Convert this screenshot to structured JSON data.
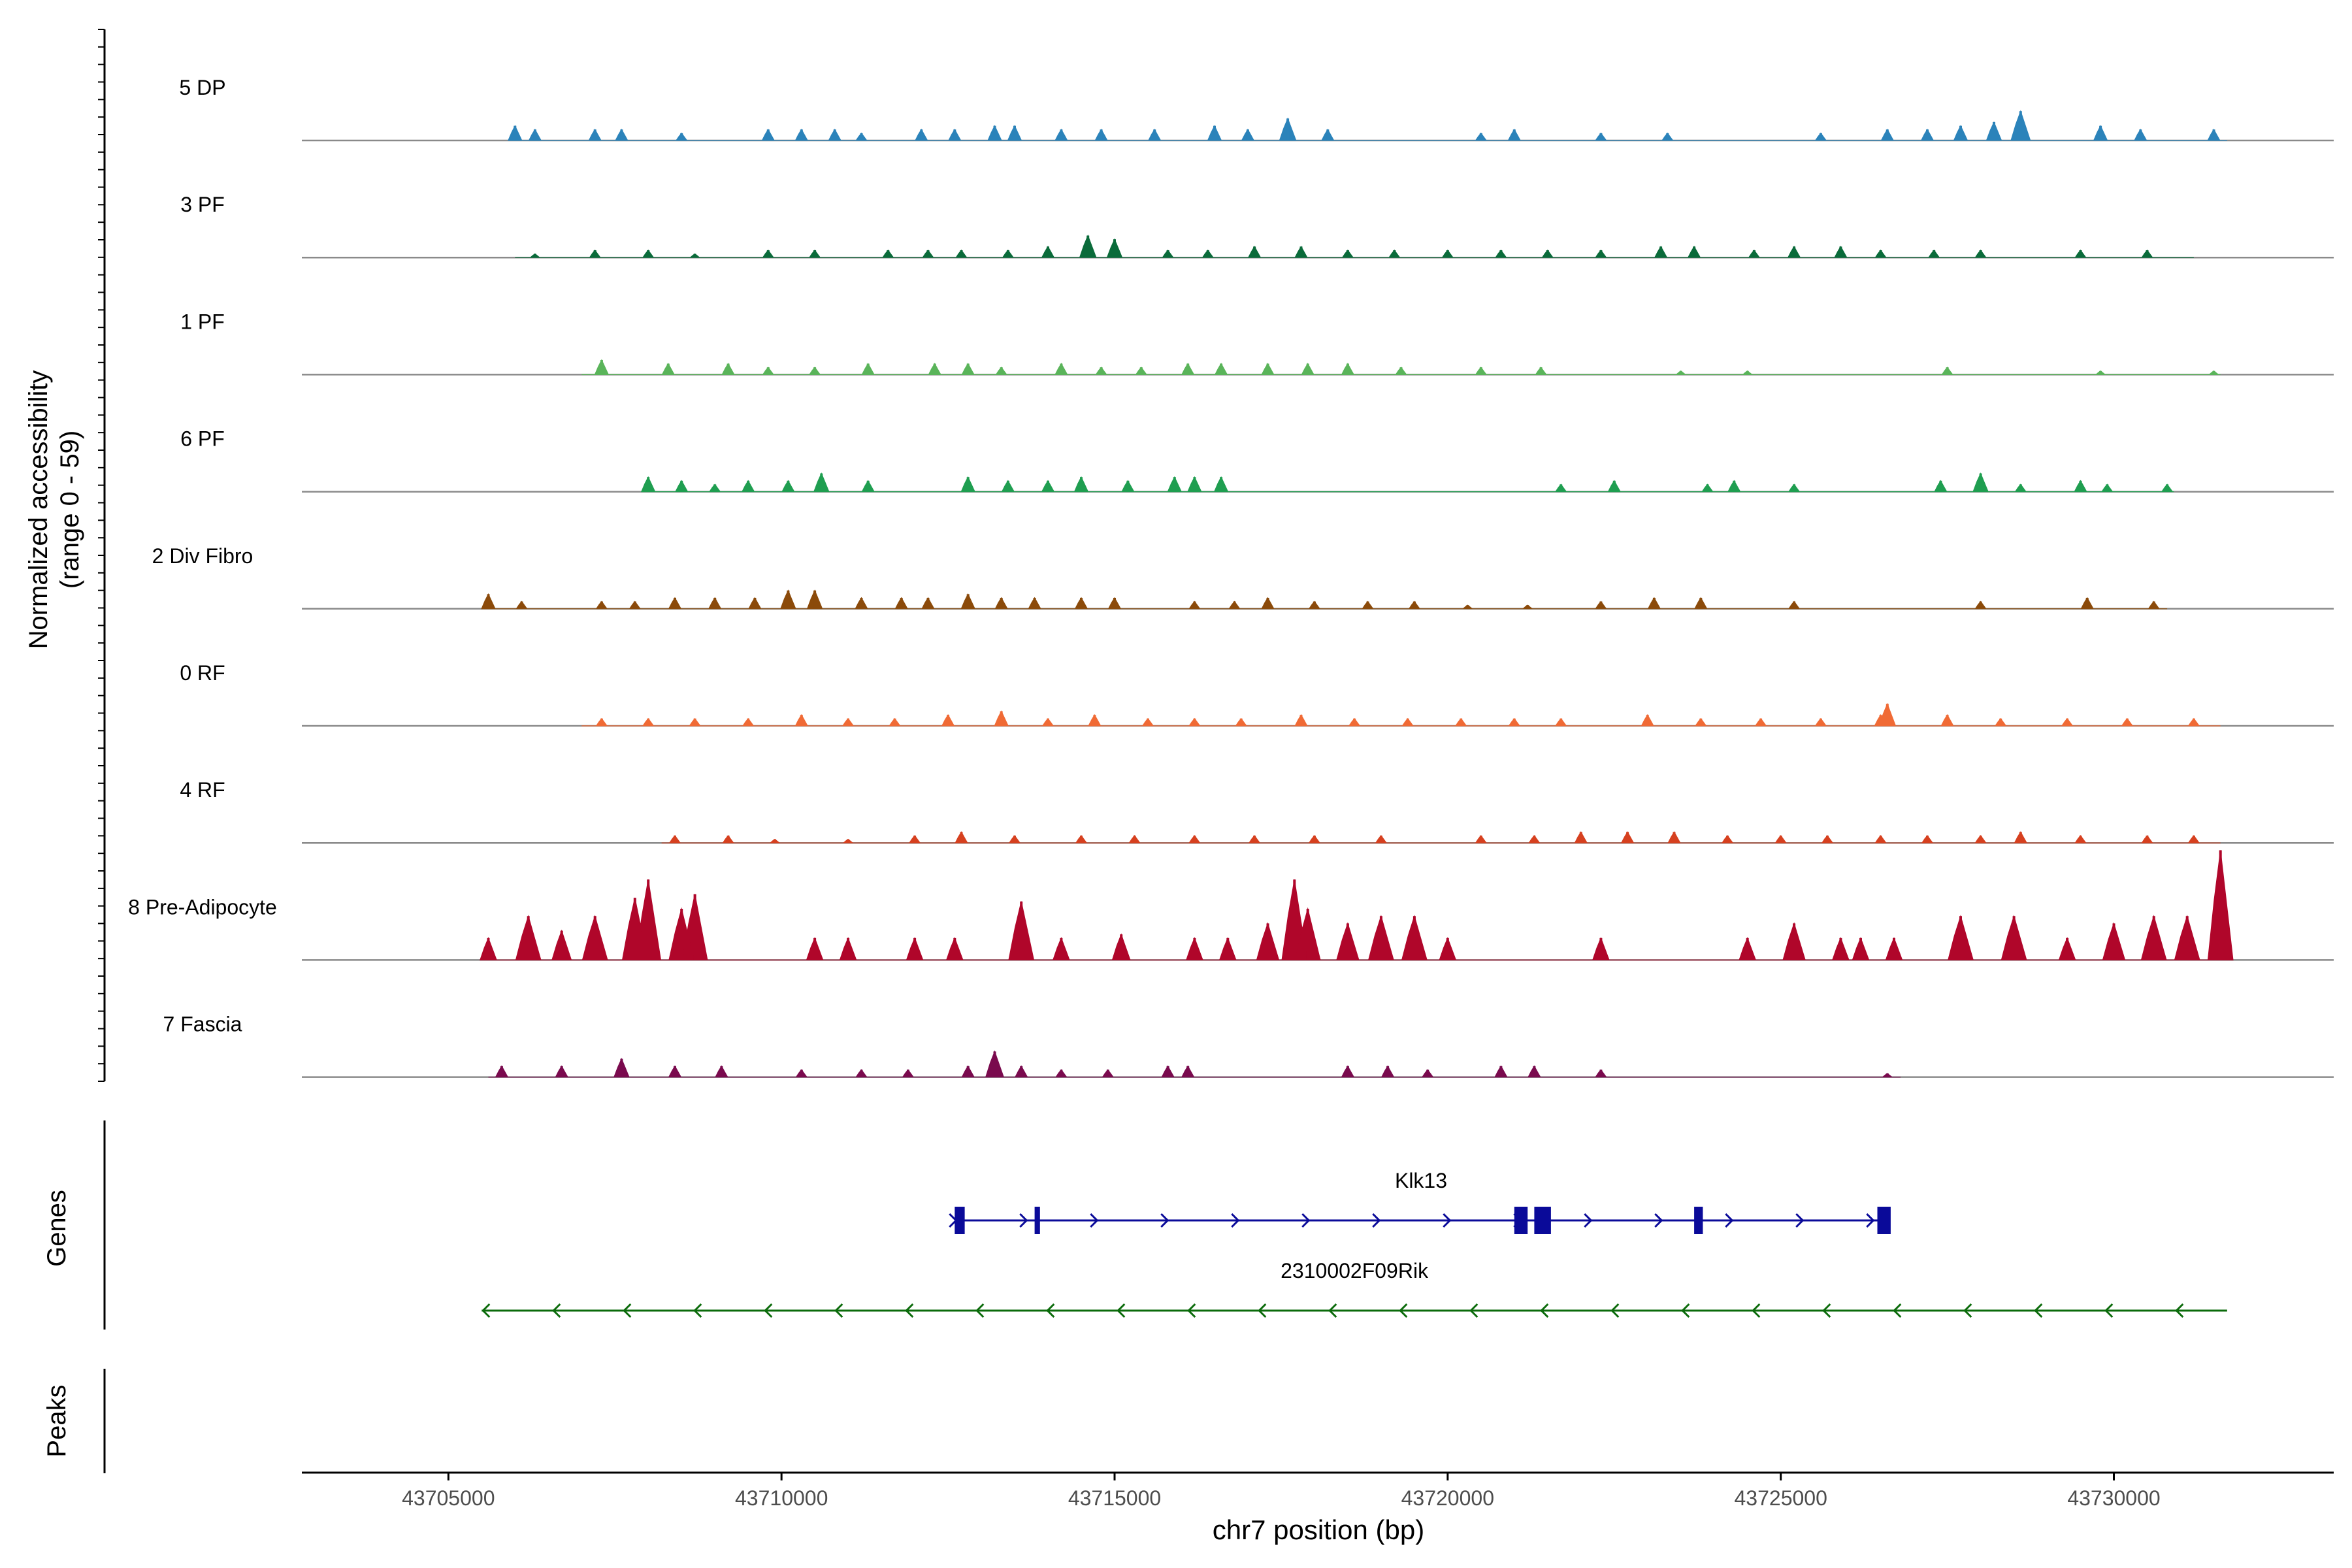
{
  "chart_data": {
    "type": "area",
    "title": "",
    "ylabel_line1": "Normalized accessibility",
    "ylabel_line2": "(range 0 - 59)",
    "ylim": [
      0,
      59
    ],
    "xlabel": "chr7 position (bp)",
    "xlim": [
      43702800,
      43733300
    ],
    "xticks": [
      43705000,
      43710000,
      43715000,
      43720000,
      43725000,
      43730000
    ],
    "xtick_labels": [
      "43705000",
      "43710000",
      "43715000",
      "43720000",
      "43725000",
      "43730000"
    ],
    "genes_label": "Genes",
    "peaks_label": "Peaks",
    "tracks": [
      {
        "name": "5 DP",
        "color": "#2b83ba",
        "range": [
          43706000,
          43731700
        ],
        "peaks": [
          [
            43706000,
            4
          ],
          [
            43706300,
            3
          ],
          [
            43707200,
            3
          ],
          [
            43707600,
            3
          ],
          [
            43708500,
            2
          ],
          [
            43709800,
            3
          ],
          [
            43710300,
            3
          ],
          [
            43710800,
            3
          ],
          [
            43711200,
            2
          ],
          [
            43712100,
            3
          ],
          [
            43712600,
            3
          ],
          [
            43713200,
            4
          ],
          [
            43713500,
            4
          ],
          [
            43714200,
            3
          ],
          [
            43714800,
            3
          ],
          [
            43715600,
            3
          ],
          [
            43716500,
            4
          ],
          [
            43717000,
            3
          ],
          [
            43717600,
            6
          ],
          [
            43718200,
            3
          ],
          [
            43720500,
            2
          ],
          [
            43721000,
            3
          ],
          [
            43722300,
            2
          ],
          [
            43723300,
            2
          ],
          [
            43725600,
            2
          ],
          [
            43726600,
            3
          ],
          [
            43727200,
            3
          ],
          [
            43727700,
            4
          ],
          [
            43728200,
            5
          ],
          [
            43728600,
            8
          ],
          [
            43729800,
            4
          ],
          [
            43730400,
            3
          ],
          [
            43731500,
            3
          ]
        ]
      },
      {
        "name": "3 PF",
        "color": "#0a6b3a",
        "range": [
          43706000,
          43731200
        ],
        "peaks": [
          [
            43706300,
            1
          ],
          [
            43707200,
            2
          ],
          [
            43708000,
            2
          ],
          [
            43708700,
            1
          ],
          [
            43709800,
            2
          ],
          [
            43710500,
            2
          ],
          [
            43711600,
            2
          ],
          [
            43712200,
            2
          ],
          [
            43712700,
            2
          ],
          [
            43713400,
            2
          ],
          [
            43714000,
            3
          ],
          [
            43714600,
            6
          ],
          [
            43715000,
            5
          ],
          [
            43715800,
            2
          ],
          [
            43716400,
            2
          ],
          [
            43717100,
            3
          ],
          [
            43717800,
            3
          ],
          [
            43718500,
            2
          ],
          [
            43719200,
            2
          ],
          [
            43720000,
            2
          ],
          [
            43720800,
            2
          ],
          [
            43721500,
            2
          ],
          [
            43722300,
            2
          ],
          [
            43723200,
            3
          ],
          [
            43723700,
            3
          ],
          [
            43724600,
            2
          ],
          [
            43725200,
            3
          ],
          [
            43725900,
            3
          ],
          [
            43726500,
            2
          ],
          [
            43727300,
            2
          ],
          [
            43728000,
            2
          ],
          [
            43729500,
            2
          ],
          [
            43730500,
            2
          ]
        ]
      },
      {
        "name": "1 PF",
        "color": "#5ab45a",
        "range": [
          43707000,
          43731600
        ],
        "peaks": [
          [
            43707300,
            4
          ],
          [
            43708300,
            3
          ],
          [
            43709200,
            3
          ],
          [
            43709800,
            2
          ],
          [
            43710500,
            2
          ],
          [
            43711300,
            3
          ],
          [
            43712300,
            3
          ],
          [
            43712800,
            3
          ],
          [
            43713300,
            2
          ],
          [
            43714200,
            3
          ],
          [
            43714800,
            2
          ],
          [
            43715400,
            2
          ],
          [
            43716100,
            3
          ],
          [
            43716600,
            3
          ],
          [
            43717300,
            3
          ],
          [
            43717900,
            3
          ],
          [
            43718500,
            3
          ],
          [
            43719300,
            2
          ],
          [
            43720500,
            2
          ],
          [
            43721400,
            2
          ],
          [
            43723500,
            1
          ],
          [
            43724500,
            1
          ],
          [
            43727500,
            2
          ],
          [
            43729800,
            1
          ],
          [
            43731500,
            1
          ]
        ]
      },
      {
        "name": "6 PF",
        "color": "#1f9e50",
        "range": [
          43707900,
          43730900
        ],
        "peaks": [
          [
            43708000,
            4
          ],
          [
            43708500,
            3
          ],
          [
            43709000,
            2
          ],
          [
            43709500,
            3
          ],
          [
            43710100,
            3
          ],
          [
            43710600,
            5
          ],
          [
            43711300,
            3
          ],
          [
            43712800,
            4
          ],
          [
            43713400,
            3
          ],
          [
            43714000,
            3
          ],
          [
            43714500,
            4
          ],
          [
            43715200,
            3
          ],
          [
            43715900,
            4
          ],
          [
            43716200,
            4
          ],
          [
            43716600,
            4
          ],
          [
            43721700,
            2
          ],
          [
            43722500,
            3
          ],
          [
            43723900,
            2
          ],
          [
            43724300,
            3
          ],
          [
            43725200,
            2
          ],
          [
            43727400,
            3
          ],
          [
            43728000,
            5
          ],
          [
            43728600,
            2
          ],
          [
            43729500,
            3
          ],
          [
            43729900,
            2
          ],
          [
            43730800,
            2
          ]
        ]
      },
      {
        "name": "2 Div Fibro",
        "color": "#8b4a0a",
        "range": [
          43705600,
          43730800
        ],
        "peaks": [
          [
            43705600,
            4
          ],
          [
            43706100,
            2
          ],
          [
            43707300,
            2
          ],
          [
            43707800,
            2
          ],
          [
            43708400,
            3
          ],
          [
            43709000,
            3
          ],
          [
            43709600,
            3
          ],
          [
            43710100,
            5
          ],
          [
            43710500,
            5
          ],
          [
            43711200,
            3
          ],
          [
            43711800,
            3
          ],
          [
            43712200,
            3
          ],
          [
            43712800,
            4
          ],
          [
            43713300,
            3
          ],
          [
            43713800,
            3
          ],
          [
            43714500,
            3
          ],
          [
            43715000,
            3
          ],
          [
            43716200,
            2
          ],
          [
            43716800,
            2
          ],
          [
            43717300,
            3
          ],
          [
            43718000,
            2
          ],
          [
            43718800,
            2
          ],
          [
            43719500,
            2
          ],
          [
            43720300,
            1
          ],
          [
            43721200,
            1
          ],
          [
            43722300,
            2
          ],
          [
            43723100,
            3
          ],
          [
            43723800,
            3
          ],
          [
            43725200,
            2
          ],
          [
            43728000,
            2
          ],
          [
            43729600,
            3
          ],
          [
            43730600,
            2
          ]
        ]
      },
      {
        "name": "0 RF",
        "color": "#f06a35",
        "range": [
          43707000,
          43731600
        ],
        "peaks": [
          [
            43707300,
            2
          ],
          [
            43708000,
            2
          ],
          [
            43708700,
            2
          ],
          [
            43709500,
            2
          ],
          [
            43710300,
            3
          ],
          [
            43711000,
            2
          ],
          [
            43711700,
            2
          ],
          [
            43712500,
            3
          ],
          [
            43713300,
            4
          ],
          [
            43714000,
            2
          ],
          [
            43714700,
            3
          ],
          [
            43715500,
            2
          ],
          [
            43716200,
            2
          ],
          [
            43716900,
            2
          ],
          [
            43717800,
            3
          ],
          [
            43718600,
            2
          ],
          [
            43719400,
            2
          ],
          [
            43720200,
            2
          ],
          [
            43721000,
            2
          ],
          [
            43721700,
            2
          ],
          [
            43723000,
            3
          ],
          [
            43723800,
            2
          ],
          [
            43724700,
            2
          ],
          [
            43725600,
            2
          ],
          [
            43726500,
            3
          ],
          [
            43726600,
            6
          ],
          [
            43727500,
            3
          ],
          [
            43728300,
            2
          ],
          [
            43729300,
            2
          ],
          [
            43730200,
            2
          ],
          [
            43731200,
            2
          ]
        ]
      },
      {
        "name": "4 RF",
        "color": "#d6401f",
        "range": [
          43708200,
          43731600
        ],
        "peaks": [
          [
            43708400,
            2
          ],
          [
            43709200,
            2
          ],
          [
            43709900,
            1
          ],
          [
            43711000,
            1
          ],
          [
            43712000,
            2
          ],
          [
            43712700,
            3
          ],
          [
            43713500,
            2
          ],
          [
            43714500,
            2
          ],
          [
            43715300,
            2
          ],
          [
            43716200,
            2
          ],
          [
            43717100,
            2
          ],
          [
            43718000,
            2
          ],
          [
            43719000,
            2
          ],
          [
            43720500,
            2
          ],
          [
            43721300,
            2
          ],
          [
            43722000,
            3
          ],
          [
            43722700,
            3
          ],
          [
            43723400,
            3
          ],
          [
            43724200,
            2
          ],
          [
            43725000,
            2
          ],
          [
            43725700,
            2
          ],
          [
            43726500,
            2
          ],
          [
            43727200,
            2
          ],
          [
            43728000,
            2
          ],
          [
            43728600,
            3
          ],
          [
            43729500,
            2
          ],
          [
            43730500,
            2
          ],
          [
            43731200,
            2
          ]
        ]
      },
      {
        "name": "8 Pre-Adipocyte",
        "color": "#b0062a",
        "range": [
          43705500,
          43731700
        ],
        "peaks": [
          [
            43705600,
            6
          ],
          [
            43706200,
            12
          ],
          [
            43706700,
            8
          ],
          [
            43707200,
            12
          ],
          [
            43707800,
            17
          ],
          [
            43708000,
            22
          ],
          [
            43708500,
            14
          ],
          [
            43708700,
            18
          ],
          [
            43710500,
            6
          ],
          [
            43711000,
            6
          ],
          [
            43712000,
            6
          ],
          [
            43712600,
            6
          ],
          [
            43713600,
            16
          ],
          [
            43714200,
            6
          ],
          [
            43715100,
            7
          ],
          [
            43716200,
            6
          ],
          [
            43716700,
            6
          ],
          [
            43717300,
            10
          ],
          [
            43717700,
            22
          ],
          [
            43717900,
            14
          ],
          [
            43718500,
            10
          ],
          [
            43719000,
            12
          ],
          [
            43719500,
            12
          ],
          [
            43720000,
            6
          ],
          [
            43722300,
            6
          ],
          [
            43724500,
            6
          ],
          [
            43725200,
            10
          ],
          [
            43725900,
            6
          ],
          [
            43726200,
            6
          ],
          [
            43726700,
            6
          ],
          [
            43727700,
            12
          ],
          [
            43728500,
            12
          ],
          [
            43729300,
            6
          ],
          [
            43730000,
            10
          ],
          [
            43730600,
            12
          ],
          [
            43731100,
            12
          ],
          [
            43731600,
            30
          ]
        ]
      },
      {
        "name": "7 Fascia",
        "color": "#7a0a4e",
        "range": [
          43705600,
          43726800
        ],
        "peaks": [
          [
            43705800,
            3
          ],
          [
            43706700,
            3
          ],
          [
            43707600,
            5
          ],
          [
            43708400,
            3
          ],
          [
            43709100,
            3
          ],
          [
            43710300,
            2
          ],
          [
            43711200,
            2
          ],
          [
            43711900,
            2
          ],
          [
            43712800,
            3
          ],
          [
            43713200,
            7
          ],
          [
            43713600,
            3
          ],
          [
            43714200,
            2
          ],
          [
            43714900,
            2
          ],
          [
            43715800,
            3
          ],
          [
            43716100,
            3
          ],
          [
            43718500,
            3
          ],
          [
            43719100,
            3
          ],
          [
            43719700,
            2
          ],
          [
            43720800,
            3
          ],
          [
            43721300,
            3
          ],
          [
            43722300,
            2
          ],
          [
            43726600,
            1
          ]
        ]
      }
    ],
    "genes": [
      {
        "name": "Klk13",
        "color": "#0a0a99",
        "start": 43712600,
        "end": 43726600,
        "strand": "+",
        "exons": [
          [
            43712600,
            43712750
          ],
          [
            43713800,
            43713880
          ],
          [
            43721000,
            43721200
          ],
          [
            43721300,
            43721550
          ],
          [
            43723700,
            43723830
          ],
          [
            43726450,
            43726650
          ]
        ]
      },
      {
        "name": "2310002F09Rik",
        "color": "#0b6b0b",
        "start": 43705500,
        "end": 43731700,
        "strand": "-",
        "exons": []
      }
    ]
  }
}
